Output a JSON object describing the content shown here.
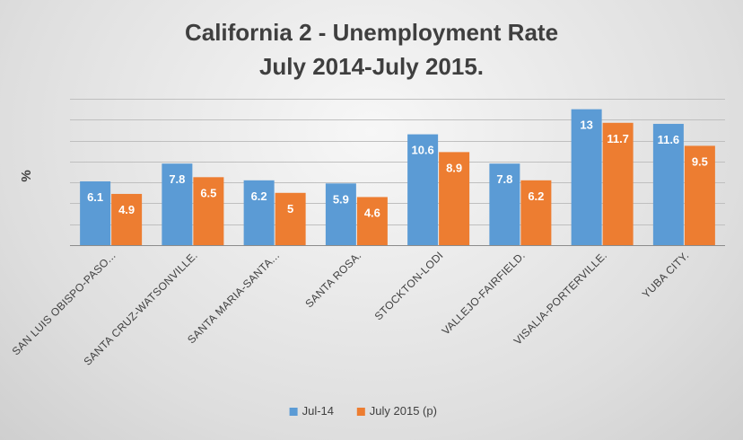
{
  "chart_data": {
    "type": "bar",
    "title_lines": [
      "California 2 - Unemployment Rate",
      "July 2014-July 2015."
    ],
    "xlabel": "",
    "ylabel": "%",
    "ylim": [
      0,
      14
    ],
    "y_gridline_step": 2,
    "y_tick_labels_shown": false,
    "grid": true,
    "legend_position": "bottom",
    "categories": [
      "SAN LUIS OBISPO-PASO...",
      "SANTA CRUZ-WATSONVILLE.",
      "SANTA MARIA-SANTA...",
      "SANTA ROSA.",
      "STOCKTON-LODI",
      "VALLEJO-FAIRFIELD.",
      "VISALIA-PORTERVILLE.",
      "YUBA CITY."
    ],
    "series": [
      {
        "name": "Jul-14",
        "color": "#5b9bd5",
        "values": [
          6.1,
          7.8,
          6.2,
          5.9,
          10.6,
          7.8,
          13,
          11.6
        ]
      },
      {
        "name": "July 2015 (p)",
        "color": "#ed7d31",
        "values": [
          4.9,
          6.5,
          5,
          4.6,
          8.9,
          6.2,
          11.7,
          9.5
        ]
      }
    ]
  }
}
